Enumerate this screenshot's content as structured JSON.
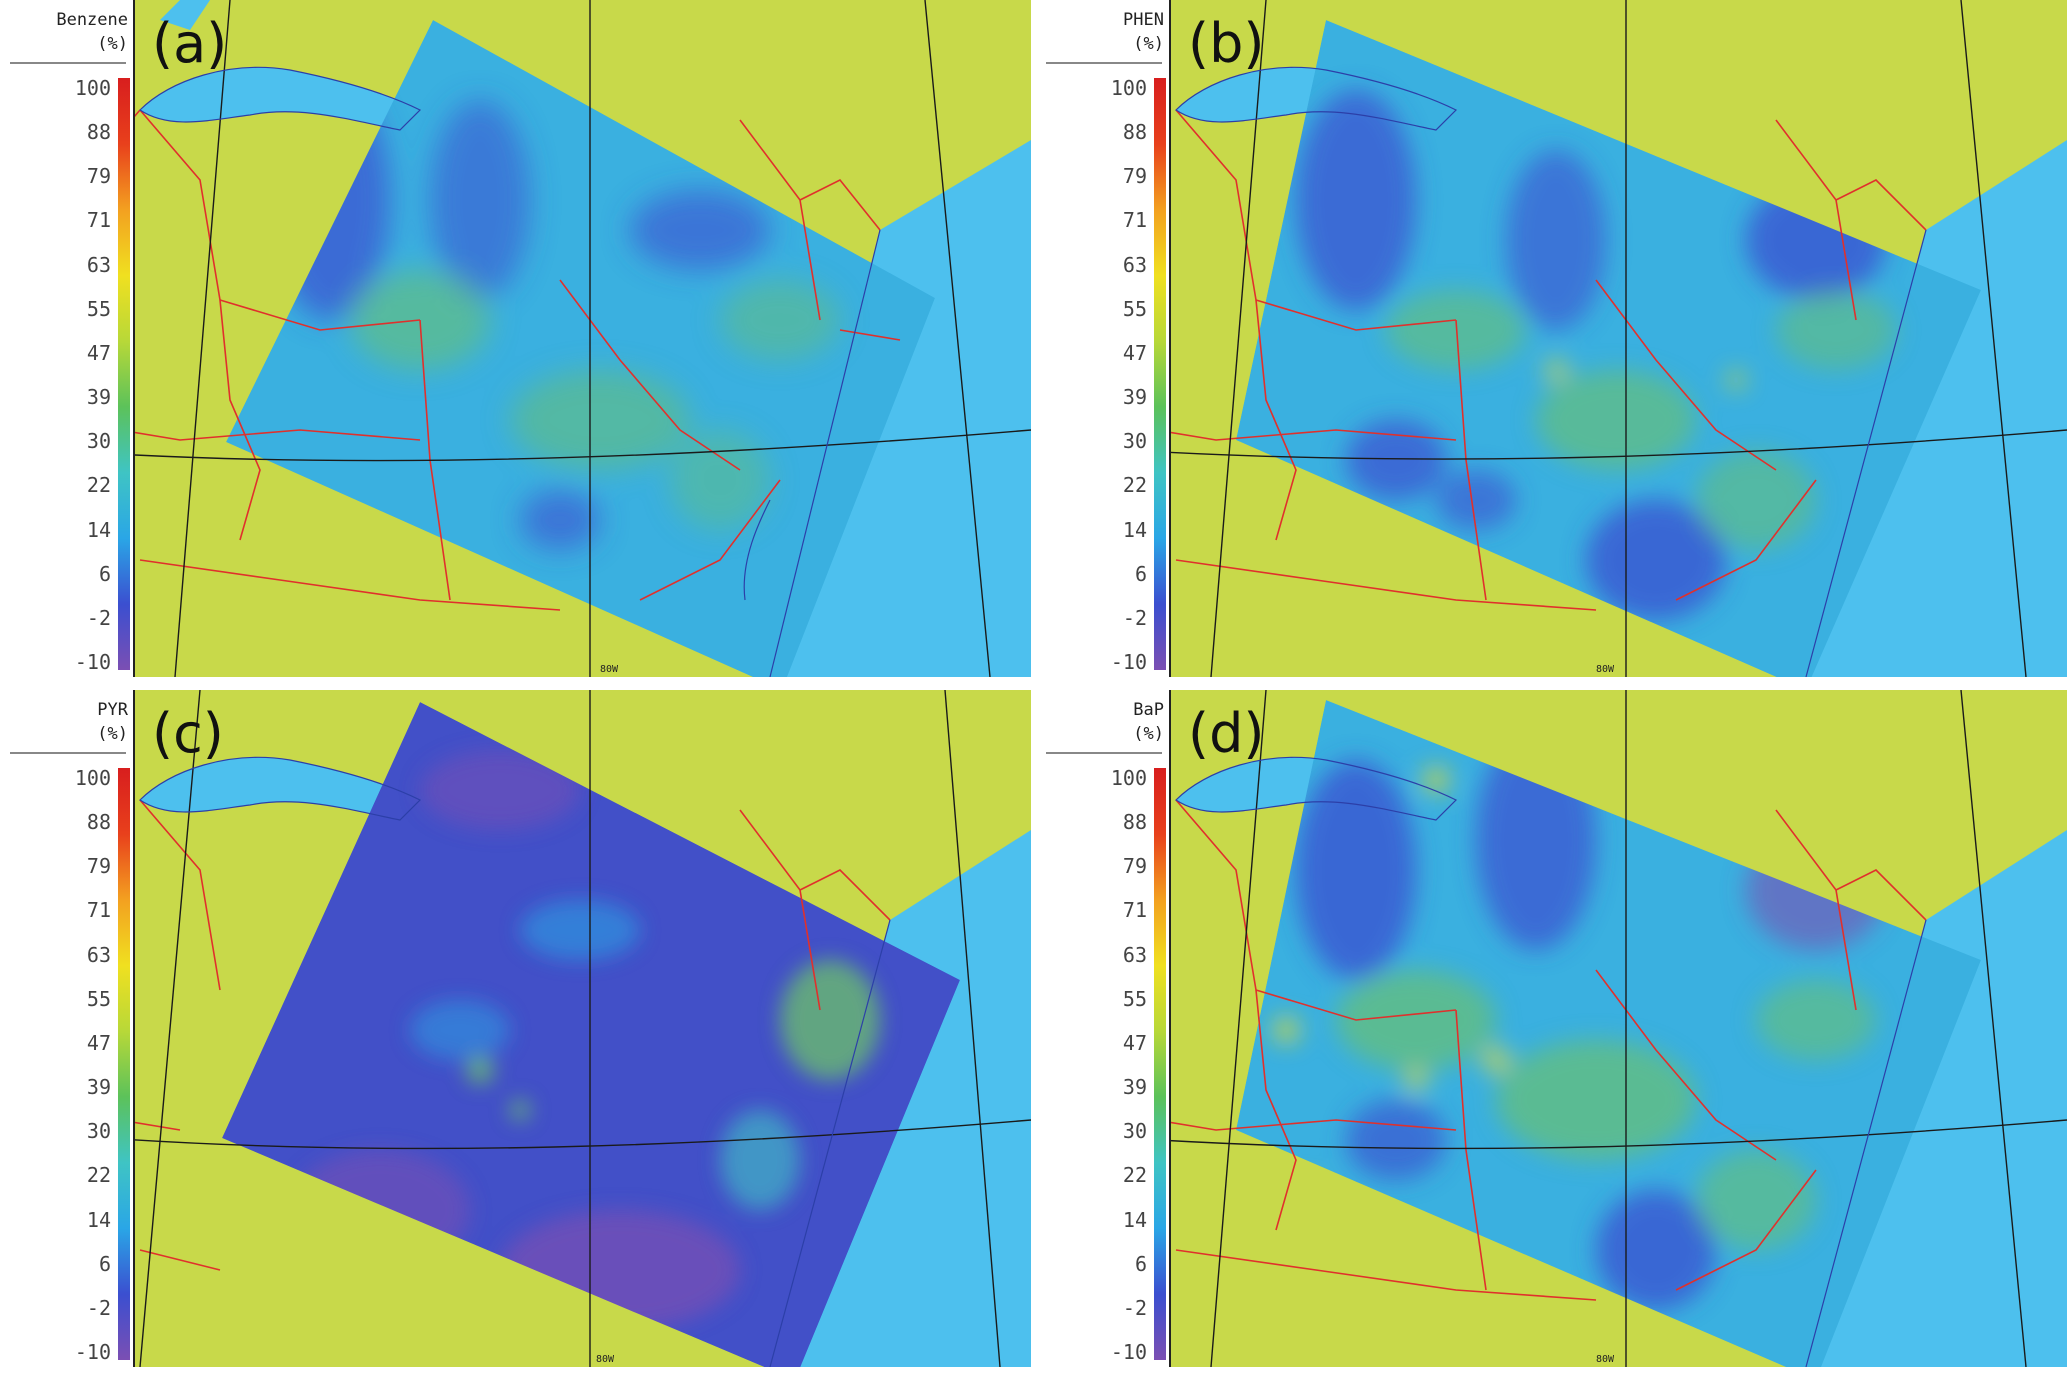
{
  "panels": [
    {
      "label": "(a)",
      "legend_title": [
        "Benzene",
        "(%)"
      ],
      "field": "benzene",
      "lon_label": "80W"
    },
    {
      "label": "(b)",
      "legend_title": [
        "PHEN",
        "(%)"
      ],
      "field": "phen",
      "lon_label": "80W"
    },
    {
      "label": "(c)",
      "legend_title": [
        "PYR",
        "(%)"
      ],
      "field": "pyr",
      "lon_label": "80W"
    },
    {
      "label": "(d)",
      "legend_title": [
        "BaP",
        "(%)"
      ],
      "field": "bap",
      "lon_label": "80W"
    }
  ],
  "legend_ticks": [
    "100",
    "88",
    "79",
    "71",
    "63",
    "55",
    "47",
    "39",
    "30",
    "22",
    "14",
    "6",
    "-2",
    "-10"
  ],
  "colors": {
    "land": "#c8d94a",
    "water": "#4dc0ee",
    "state_borders": "#e0302c",
    "graticule": "#1a1a1a",
    "coastline": "#2c3fa8"
  },
  "colorbar": [
    "#7b4fb3",
    "#3b4fd0",
    "#2aa6e6",
    "#3fc4c4",
    "#5cc25a",
    "#b8d838",
    "#f0e020",
    "#f3a020",
    "#e8401c",
    "#d81e1e"
  ]
}
